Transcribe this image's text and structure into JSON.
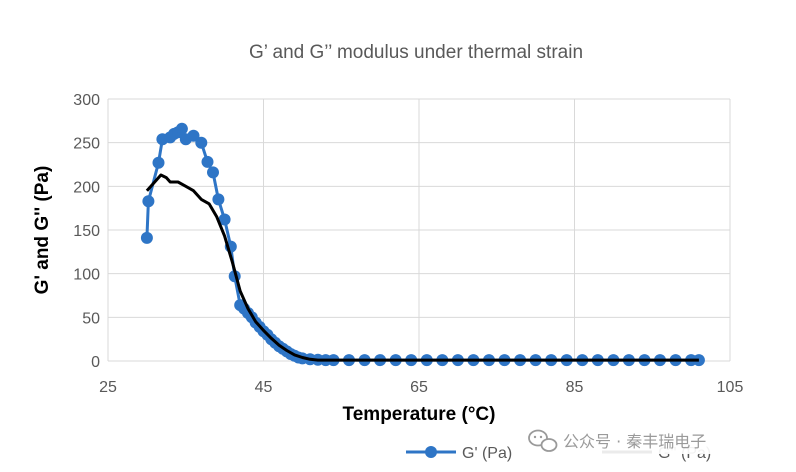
{
  "chart_data": {
    "type": "line",
    "title": "G’ and G’’ modulus under thermal strain",
    "xlabel": "Temperature (°C)",
    "ylabel": "G' and G'' (Pa)",
    "xlim": [
      25,
      105
    ],
    "ylim": [
      0,
      300
    ],
    "x_ticks": [
      25,
      45,
      65,
      85,
      105
    ],
    "y_ticks": [
      0,
      50,
      100,
      150,
      200,
      250,
      300
    ],
    "grid": "vertical and horizontal major gridlines",
    "legend_position": "bottom",
    "series": [
      {
        "name": "G' (Pa)",
        "color": "#2e75c6",
        "marker": "circle",
        "points": [
          [
            30,
            141
          ],
          [
            30.2,
            183
          ],
          [
            31.5,
            227
          ],
          [
            32,
            254
          ],
          [
            33,
            256
          ],
          [
            33.5,
            260
          ],
          [
            34,
            262
          ],
          [
            34.5,
            266
          ],
          [
            35,
            254
          ],
          [
            36,
            258
          ],
          [
            37,
            250
          ],
          [
            37.8,
            228
          ],
          [
            38.5,
            216
          ],
          [
            39.2,
            185
          ],
          [
            40,
            162
          ],
          [
            40.8,
            131
          ],
          [
            41.3,
            97
          ],
          [
            42,
            64
          ],
          [
            42.5,
            60
          ],
          [
            43,
            55
          ],
          [
            43.5,
            50
          ],
          [
            44,
            44
          ],
          [
            44.5,
            39
          ],
          [
            45,
            34
          ],
          [
            45.5,
            30
          ],
          [
            46,
            25
          ],
          [
            46.5,
            21
          ],
          [
            47,
            17
          ],
          [
            47.5,
            14
          ],
          [
            48,
            11
          ],
          [
            48.5,
            8
          ],
          [
            49,
            6
          ],
          [
            49.5,
            4
          ],
          [
            50,
            3
          ],
          [
            51,
            2
          ],
          [
            52,
            1.5
          ],
          [
            53,
            1
          ],
          [
            54,
            1
          ],
          [
            56,
            1
          ],
          [
            58,
            1
          ],
          [
            60,
            1
          ],
          [
            62,
            1
          ],
          [
            64,
            1
          ],
          [
            66,
            1
          ],
          [
            68,
            1
          ],
          [
            70,
            1
          ],
          [
            72,
            1
          ],
          [
            74,
            1
          ],
          [
            76,
            1
          ],
          [
            78,
            1
          ],
          [
            80,
            1
          ],
          [
            82,
            1
          ],
          [
            84,
            1
          ],
          [
            86,
            1
          ],
          [
            88,
            1
          ],
          [
            90,
            1
          ],
          [
            92,
            1
          ],
          [
            94,
            1
          ],
          [
            96,
            1
          ],
          [
            98,
            1
          ],
          [
            100,
            1
          ],
          [
            101,
            1
          ]
        ]
      },
      {
        "name": "G'' (Pa)",
        "color": "#000000",
        "marker": "none",
        "points": [
          [
            30,
            195
          ],
          [
            31,
            205
          ],
          [
            31.8,
            213
          ],
          [
            32.5,
            210
          ],
          [
            33,
            205
          ],
          [
            34,
            205
          ],
          [
            35,
            200
          ],
          [
            36,
            195
          ],
          [
            37,
            185
          ],
          [
            38,
            180
          ],
          [
            39,
            165
          ],
          [
            40,
            143
          ],
          [
            41,
            113
          ],
          [
            42,
            80
          ],
          [
            43,
            60
          ],
          [
            44,
            45
          ],
          [
            45,
            35
          ],
          [
            46,
            26
          ],
          [
            47,
            18
          ],
          [
            48,
            12
          ],
          [
            49,
            7
          ],
          [
            50,
            4
          ],
          [
            51,
            2
          ],
          [
            52,
            1
          ],
          [
            55,
            1
          ],
          [
            60,
            1
          ],
          [
            70,
            1
          ],
          [
            80,
            1
          ],
          [
            90,
            1
          ],
          [
            101,
            1
          ]
        ]
      }
    ]
  },
  "watermark": {
    "icon": "wechat-icon",
    "text": "公众号 · 秦丰瑞电子"
  }
}
